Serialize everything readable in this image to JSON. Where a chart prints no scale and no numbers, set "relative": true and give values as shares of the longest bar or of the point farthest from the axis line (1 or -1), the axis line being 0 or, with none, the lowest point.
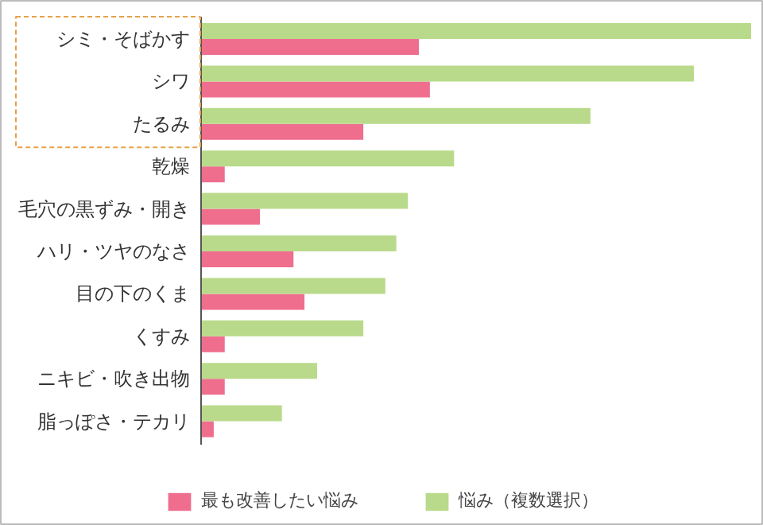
{
  "chart_data": {
    "type": "bar",
    "orientation": "horizontal",
    "relative": true,
    "legend": "bottom",
    "categories": [
      "シミ・そばかす",
      "シワ",
      "たるみ",
      "乾燥",
      "毛穴の黒ずみ・開き",
      "ハリ・ツヤのなさ",
      "目の下のくま",
      "くすみ",
      "ニキビ・吹き出物",
      "脂っぽさ・テカリ"
    ],
    "series": [
      {
        "name": "最も改善したい悩み",
        "color": "#ef6e8e",
        "values": [
          0.396,
          0.416,
          0.295,
          0.043,
          0.107,
          0.168,
          0.188,
          0.043,
          0.043,
          0.023
        ]
      },
      {
        "name": "悩み（複数選択）",
        "color": "#b9da8a",
        "values": [
          1,
          0.896,
          0.708,
          0.46,
          0.376,
          0.355,
          0.335,
          0.295,
          0.211,
          0.147
        ]
      }
    ]
  }
}
